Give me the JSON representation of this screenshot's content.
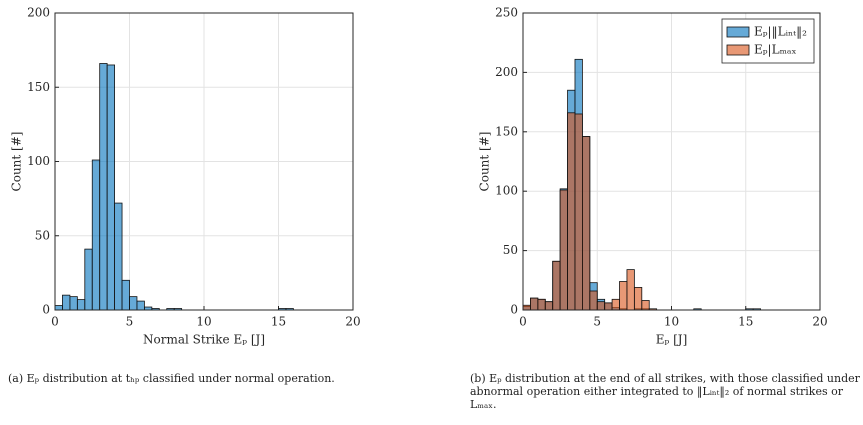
{
  "chart_data": [
    {
      "type": "histogram",
      "caption": "(a) Eₚ distribution at tₕₚ classified under normal operation.",
      "xlabel": "Normal Strike Eₚ [J]",
      "ylabel": "Count [#]",
      "bins": [
        0,
        0.5,
        1,
        1.5,
        2,
        2.5,
        3,
        3.5,
        4,
        4.5,
        5,
        5.5,
        6,
        6.5,
        7,
        7.5,
        8,
        8.5,
        9,
        9.5,
        10,
        10.5,
        11,
        11.5,
        12,
        12.5,
        13,
        13.5,
        14,
        14.5,
        15,
        15.5,
        16,
        16.5,
        17,
        17.5,
        18,
        18.5,
        19,
        19.5,
        20
      ],
      "series": [
        {
          "color": "#0072bd",
          "values": [
            3,
            10,
            9,
            7,
            41,
            101,
            166,
            165,
            72,
            20,
            9,
            6,
            2,
            1,
            0,
            1,
            1,
            0,
            0,
            0,
            0,
            0,
            0,
            0,
            0,
            0,
            0,
            0,
            0,
            0,
            1,
            1,
            0,
            0,
            0,
            0,
            0,
            0,
            0,
            0
          ]
        }
      ],
      "xlim": [
        0,
        20
      ],
      "xticks": [
        0,
        5,
        10,
        15,
        20
      ],
      "ylim": [
        0,
        200
      ],
      "yticks": [
        0,
        50,
        100,
        150,
        200
      ],
      "grid": true
    },
    {
      "type": "histogram",
      "caption": "(b) Eₚ distribution at the end of all strikes, with those classified under abnormal operation either integrated to ‖Lᵢₙₜ‖₂ of normal strikes or Lₘₐₓ.",
      "xlabel": "Eₚ [J]",
      "ylabel": "Count [#]",
      "bins": [
        0,
        0.5,
        1,
        1.5,
        2,
        2.5,
        3,
        3.5,
        4,
        4.5,
        5,
        5.5,
        6,
        6.5,
        7,
        7.5,
        8,
        8.5,
        9,
        9.5,
        10,
        10.5,
        11,
        11.5,
        12,
        12.5,
        13,
        13.5,
        14,
        14.5,
        15,
        15.5,
        16,
        16.5,
        17,
        17.5,
        18,
        18.5,
        19,
        19.5,
        20
      ],
      "series": [
        {
          "name": "Eₚ|‖Lᵢₙₜ‖₂",
          "color": "#0072bd",
          "values": [
            3,
            10,
            9,
            7,
            41,
            102,
            185,
            211,
            146,
            23,
            9,
            6,
            2,
            1,
            0,
            1,
            1,
            0,
            0,
            0,
            0,
            0,
            0,
            1,
            0,
            0,
            0,
            0,
            0,
            0,
            1,
            1,
            0,
            0,
            0,
            0,
            0,
            0,
            0,
            0
          ]
        },
        {
          "name": "Eₚ|Lₘₐₓ",
          "color": "#d95319",
          "values": [
            4,
            10,
            9,
            7,
            41,
            101,
            166,
            165,
            146,
            16,
            7,
            6,
            9,
            24,
            34,
            19,
            8,
            1,
            0,
            0,
            0,
            0,
            0,
            0,
            0,
            0,
            0,
            0,
            0,
            0,
            0,
            0,
            0,
            0,
            0,
            0,
            0,
            0,
            0,
            0
          ]
        }
      ],
      "xlim": [
        0,
        20
      ],
      "xticks": [
        0,
        5,
        10,
        15,
        20
      ],
      "ylim": [
        0,
        250
      ],
      "yticks": [
        0,
        50,
        100,
        150,
        200,
        250
      ],
      "grid": true,
      "legend": "northeast"
    }
  ]
}
